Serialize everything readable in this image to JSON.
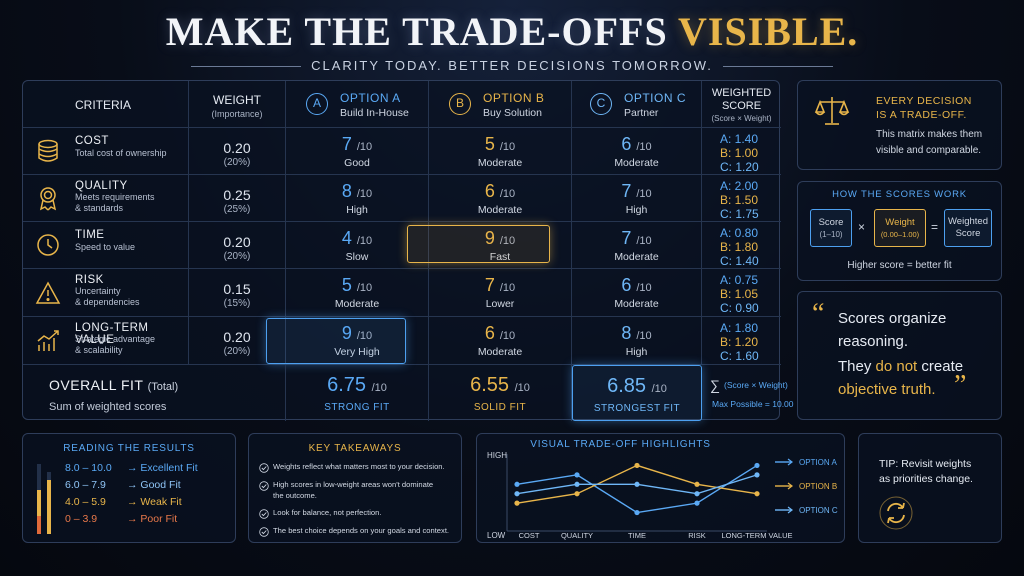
{
  "title": {
    "main": "MAKE THE TRADE-OFFS",
    "accent": "VISIBLE."
  },
  "subtitle": "CLARITY TODAY. BETTER DECISIONS TOMORROW.",
  "colors": {
    "gold": "#e8b54a",
    "blue": "#5aa9f5",
    "light_blue": "#6fb7f7"
  },
  "matrix": {
    "headers": {
      "criteria": "CRITERIA",
      "weight": "WEIGHT",
      "weight_sub": "(Importance)",
      "weighted": "WEIGHTED",
      "weighted2": "SCORE",
      "weighted_sub": "(Score × Weight)"
    },
    "options": [
      {
        "letter": "A",
        "name": "OPTION A",
        "sub": "Build In-House"
      },
      {
        "letter": "B",
        "name": "OPTION B",
        "sub": "Buy Solution"
      },
      {
        "letter": "C",
        "name": "OPTION C",
        "sub": "Partner"
      }
    ],
    "rows": [
      {
        "icon": "coins-icon",
        "name": "COST",
        "desc": [
          "Total cost of ownership"
        ],
        "weight": "0.20",
        "pct": "(20%)",
        "scores": [
          {
            "v": "7",
            "l": "Good"
          },
          {
            "v": "5",
            "l": "Moderate"
          },
          {
            "v": "6",
            "l": "Moderate"
          }
        ],
        "ws": [
          "A: 1.40",
          "B: 1.00",
          "C: 1.20"
        ]
      },
      {
        "icon": "award-icon",
        "name": "QUALITY",
        "desc": [
          "Meets requirements",
          "& standards"
        ],
        "weight": "0.25",
        "pct": "(25%)",
        "scores": [
          {
            "v": "8",
            "l": "High"
          },
          {
            "v": "6",
            "l": "Moderate"
          },
          {
            "v": "7",
            "l": "High"
          }
        ],
        "ws": [
          "A: 2.00",
          "B: 1.50",
          "C: 1.75"
        ]
      },
      {
        "icon": "clock-icon",
        "name": "TIME",
        "desc": [
          "Speed to value"
        ],
        "weight": "0.20",
        "pct": "(20%)",
        "scores": [
          {
            "v": "4",
            "l": "Slow"
          },
          {
            "v": "9",
            "l": "Fast"
          },
          {
            "v": "7",
            "l": "Moderate"
          }
        ],
        "ws": [
          "A: 0.80",
          "B: 1.80",
          "C: 1.40"
        ]
      },
      {
        "icon": "warning-icon",
        "name": "RISK",
        "desc": [
          "Uncertainty",
          "& dependencies"
        ],
        "weight": "0.15",
        "pct": "(15%)",
        "scores": [
          {
            "v": "5",
            "l": "Moderate"
          },
          {
            "v": "7",
            "l": "Lower"
          },
          {
            "v": "6",
            "l": "Moderate"
          }
        ],
        "ws": [
          "A: 0.75",
          "B: 1.05",
          "C: 0.90"
        ]
      },
      {
        "icon": "growth-chart-icon",
        "name": "LONG-TERM VALUE",
        "desc": [
          "Strategic advantage",
          "& scalability"
        ],
        "weight": "0.20",
        "pct": "(20%)",
        "scores": [
          {
            "v": "9",
            "l": "Very High"
          },
          {
            "v": "6",
            "l": "Moderate"
          },
          {
            "v": "8",
            "l": "High"
          }
        ],
        "ws": [
          "A: 1.80",
          "B: 1.20",
          "C: 1.60"
        ]
      }
    ],
    "out_of": "/10",
    "total": {
      "name": "OVERALL FIT",
      "name_suffix": "(Total)",
      "desc": "Sum of weighted scores",
      "scores": [
        {
          "v": "6.75",
          "l": "STRONG FIT"
        },
        {
          "v": "6.55",
          "l": "SOLID FIT"
        },
        {
          "v": "6.85",
          "l": "STRONGEST FIT"
        }
      ],
      "formula": "(Score × Weight)",
      "sigma": "∑",
      "max": "Max Possible = 10.00"
    }
  },
  "tradeoff": {
    "title1": "EVERY DECISION",
    "title2": "IS A TRADE-OFF.",
    "body1": "This matrix makes them",
    "body2": "visible and comparable."
  },
  "how": {
    "title": "HOW THE SCORES WORK",
    "score": "Score",
    "score_sub": "(1–10)",
    "times": "×",
    "weight": "Weight",
    "weight_sub": "(0.00–1.00)",
    "equals": "=",
    "result1": "Weighted",
    "result2": "Score",
    "note": "Higher score = better fit"
  },
  "quote": {
    "open": "“",
    "close": "”",
    "line1": "Scores organize",
    "line2": "reasoning.",
    "line3a": "They ",
    "line3b": "do not",
    "line3c": " create",
    "line4": "objective truth."
  },
  "reading": {
    "title": "READING THE RESULTS",
    "items": [
      {
        "range": "8.0 – 10.0",
        "label": "Excellent Fit",
        "color": "#5aa9f5"
      },
      {
        "range": "6.0 – 7.9",
        "label": "Good Fit",
        "color": "#8fc4f5"
      },
      {
        "range": "4.0 – 5.9",
        "label": "Weak Fit",
        "color": "#e8b54a"
      },
      {
        "range": "0 – 3.9",
        "label": "Poor Fit",
        "color": "#e8784a"
      }
    ],
    "arrow": "→"
  },
  "takeaways": {
    "title": "KEY TAKEAWAYS",
    "items": [
      [
        "Weights reflect what matters most to your decision."
      ],
      [
        "High scores in low-weight areas won't dominate",
        "the outcome."
      ],
      [
        "Look for balance, not perfection."
      ],
      [
        "The best choice depends on your goals and context."
      ]
    ]
  },
  "visual": {
    "title": "VISUAL TRADE-OFF HIGHLIGHTS",
    "high": "HIGH",
    "low": "LOW",
    "categories": [
      "COST",
      "QUALITY",
      "TIME",
      "RISK",
      "LONG-TERM VALUE"
    ],
    "legend": [
      "OPTION A",
      "OPTION B",
      "OPTION C"
    ]
  },
  "chart_data": {
    "type": "line",
    "categories": [
      "COST",
      "QUALITY",
      "TIME",
      "RISK",
      "LONG-TERM VALUE"
    ],
    "series": [
      {
        "name": "OPTION A",
        "values": [
          7,
          8,
          4,
          5,
          9
        ],
        "color": "#5aa9f5"
      },
      {
        "name": "OPTION B",
        "values": [
          5,
          6,
          9,
          7,
          6
        ],
        "color": "#e8b54a"
      },
      {
        "name": "OPTION C",
        "values": [
          6,
          7,
          7,
          6,
          8
        ],
        "color": "#6fb7f7"
      }
    ],
    "ylim": [
      3,
      10
    ]
  },
  "tip": {
    "label": "TIP:",
    "line1": "Revisit weights",
    "line2": "as priorities change."
  }
}
